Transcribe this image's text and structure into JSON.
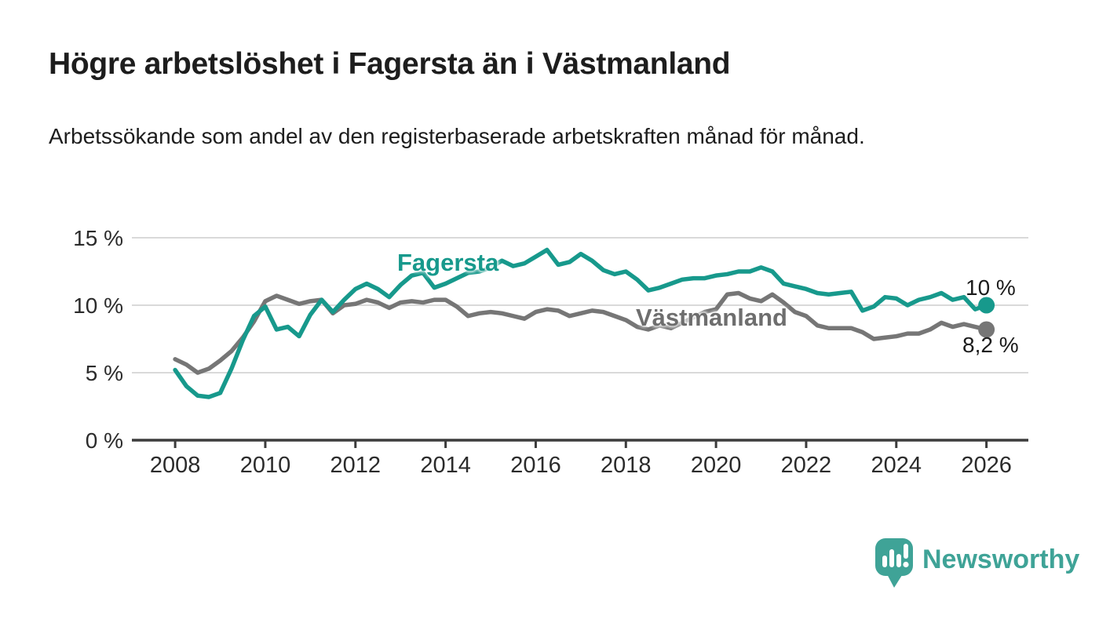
{
  "title": "Högre arbetslöshet i Fagersta än i Västmanland",
  "subtitle": "Arbetssökande som andel av den registerbaserade arbetskraften månad för månad.",
  "colors": {
    "fagersta": "#17998c",
    "vastmanland": "#767676",
    "vastmanland_label": "#6e6e6e",
    "grid": "#d9d9d9",
    "axis": "#3c3c3c",
    "tick_text": "#2b2b2b",
    "text": "#1c1c1c",
    "brand": "#3fa397"
  },
  "chart_data": {
    "type": "line",
    "title": "",
    "xlabel": "",
    "ylabel": "",
    "grid": "horizontal",
    "legend": "inline-labels",
    "ylim": [
      0,
      15
    ],
    "xlim": [
      2007.04,
      2026.93
    ],
    "y_ticks": {
      "values": [
        0,
        5,
        10,
        15
      ],
      "labels": [
        "0 %",
        "5 %",
        "10 %",
        "15 %"
      ]
    },
    "x_ticks": {
      "values": [
        2008,
        2010,
        2012,
        2014,
        2016,
        2018,
        2020,
        2022,
        2024,
        2026
      ],
      "labels": [
        "2008",
        "2010",
        "2012",
        "2014",
        "2016",
        "2018",
        "2020",
        "2022",
        "2024",
        "2026"
      ]
    },
    "x": [
      2008.0,
      2008.25,
      2008.5,
      2008.75,
      2009.0,
      2009.25,
      2009.5,
      2009.75,
      2010.0,
      2010.25,
      2010.5,
      2010.75,
      2011.0,
      2011.25,
      2011.5,
      2011.75,
      2012.0,
      2012.25,
      2012.5,
      2012.75,
      2013.0,
      2013.25,
      2013.5,
      2013.75,
      2014.0,
      2014.25,
      2014.5,
      2014.75,
      2015.0,
      2015.25,
      2015.5,
      2015.75,
      2016.0,
      2016.25,
      2016.5,
      2016.75,
      2017.0,
      2017.25,
      2017.5,
      2017.75,
      2018.0,
      2018.25,
      2018.5,
      2018.75,
      2019.0,
      2019.25,
      2019.5,
      2019.75,
      2020.0,
      2020.25,
      2020.5,
      2020.75,
      2021.0,
      2021.25,
      2021.5,
      2021.75,
      2022.0,
      2022.25,
      2022.5,
      2022.75,
      2023.0,
      2023.25,
      2023.5,
      2023.75,
      2024.0,
      2024.25,
      2024.5,
      2024.75,
      2025.0,
      2025.25,
      2025.5,
      2025.75,
      2026.0
    ],
    "series": [
      {
        "name": "Fagersta",
        "color": "#17998c",
        "end_label": "10 %",
        "values": [
          5.2,
          4.0,
          3.3,
          3.2,
          3.5,
          5.3,
          7.4,
          9.2,
          9.9,
          8.2,
          8.4,
          7.7,
          9.3,
          10.4,
          9.5,
          10.4,
          11.2,
          11.6,
          11.2,
          10.6,
          11.5,
          12.2,
          12.4,
          11.3,
          11.6,
          12.0,
          12.4,
          12.5,
          12.8,
          13.3,
          12.9,
          13.1,
          13.6,
          14.1,
          13.0,
          13.2,
          13.8,
          13.3,
          12.6,
          12.3,
          12.5,
          11.9,
          11.1,
          11.3,
          11.6,
          11.9,
          12.0,
          12.0,
          12.2,
          12.3,
          12.5,
          12.5,
          12.8,
          12.5,
          11.6,
          11.4,
          11.2,
          10.9,
          10.8,
          10.9,
          11.0,
          9.6,
          9.9,
          10.6,
          10.5,
          10.0,
          10.4,
          10.6,
          10.9,
          10.4,
          10.6,
          9.7,
          10.0
        ]
      },
      {
        "name": "Västmanland",
        "color": "#767676",
        "end_label": "8,2 %",
        "values": [
          6.0,
          5.6,
          5.0,
          5.3,
          5.9,
          6.6,
          7.6,
          8.8,
          10.3,
          10.7,
          10.4,
          10.1,
          10.3,
          10.4,
          9.4,
          10.0,
          10.1,
          10.4,
          10.2,
          9.8,
          10.2,
          10.3,
          10.2,
          10.4,
          10.4,
          9.9,
          9.2,
          9.4,
          9.5,
          9.4,
          9.2,
          9.0,
          9.5,
          9.7,
          9.6,
          9.2,
          9.4,
          9.6,
          9.5,
          9.2,
          8.9,
          8.4,
          8.2,
          8.5,
          8.3,
          8.7,
          9.1,
          9.5,
          9.7,
          10.8,
          10.9,
          10.5,
          10.3,
          10.8,
          10.2,
          9.5,
          9.2,
          8.5,
          8.3,
          8.3,
          8.3,
          8.0,
          7.5,
          7.6,
          7.7,
          7.9,
          7.9,
          8.2,
          8.7,
          8.4,
          8.6,
          8.4,
          8.2
        ]
      }
    ]
  },
  "branding": {
    "name": "Newsworthy"
  }
}
